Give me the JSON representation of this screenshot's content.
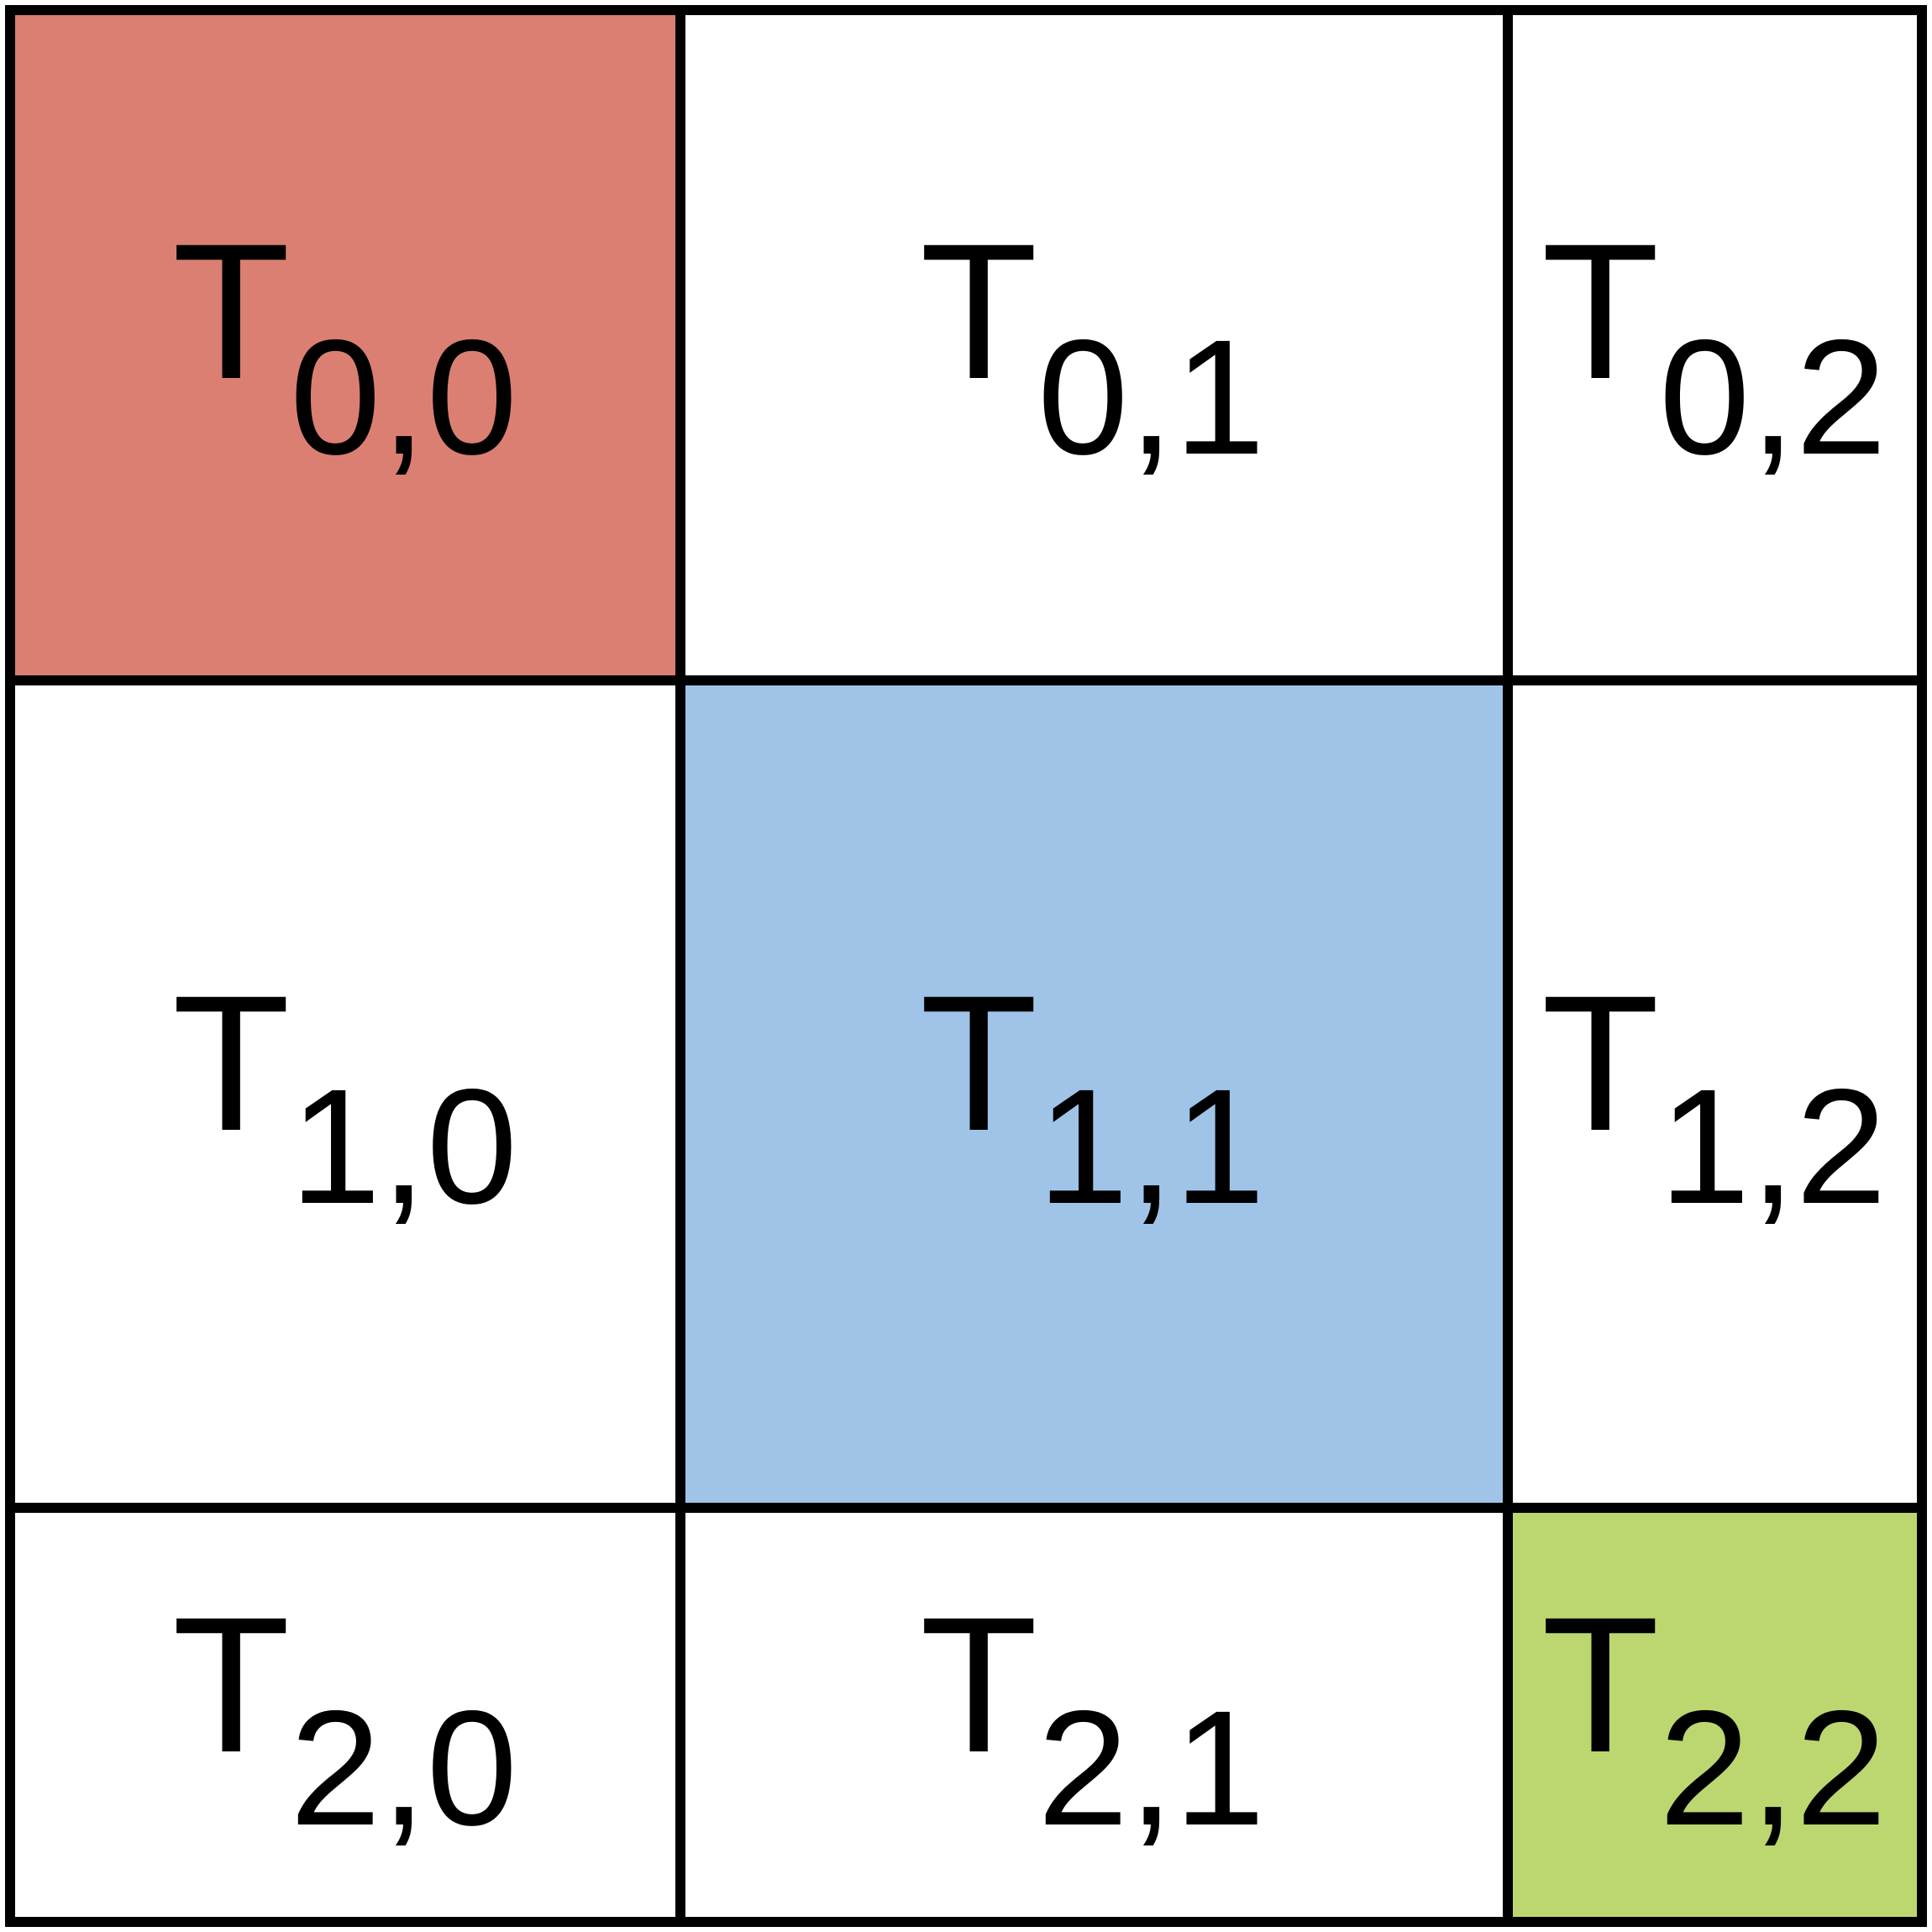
{
  "grid": {
    "rows": 3,
    "cols": 3,
    "line_color": "#000000",
    "background": "#ffffff"
  },
  "cells": [
    {
      "row": 0,
      "col": 0,
      "letter": "T",
      "subscript": "0,0",
      "fill": "#db7f73"
    },
    {
      "row": 0,
      "col": 1,
      "letter": "T",
      "subscript": "0,1",
      "fill": "#ffffff"
    },
    {
      "row": 0,
      "col": 2,
      "letter": "T",
      "subscript": "0,2",
      "fill": "#ffffff"
    },
    {
      "row": 1,
      "col": 0,
      "letter": "T",
      "subscript": "1,0",
      "fill": "#ffffff"
    },
    {
      "row": 1,
      "col": 1,
      "letter": "T",
      "subscript": "1,1",
      "fill": "#a0c4e8"
    },
    {
      "row": 1,
      "col": 2,
      "letter": "T",
      "subscript": "1,2",
      "fill": "#ffffff"
    },
    {
      "row": 2,
      "col": 0,
      "letter": "T",
      "subscript": "2,0",
      "fill": "#ffffff"
    },
    {
      "row": 2,
      "col": 1,
      "letter": "T",
      "subscript": "2,1",
      "fill": "#ffffff"
    },
    {
      "row": 2,
      "col": 2,
      "letter": "T",
      "subscript": "2,2",
      "fill": "#bcd770"
    }
  ]
}
